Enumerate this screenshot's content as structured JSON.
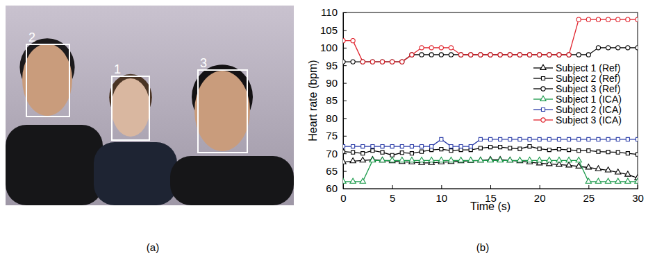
{
  "chart_data": {
    "type": "line",
    "xlabel": "Time (s)",
    "ylabel": "Heart rate (bpm)",
    "x": [
      0,
      1,
      2,
      3,
      4,
      5,
      6,
      7,
      8,
      9,
      10,
      11,
      12,
      13,
      14,
      15,
      16,
      17,
      18,
      19,
      20,
      21,
      22,
      23,
      24,
      25,
      26,
      27,
      28,
      29,
      30
    ],
    "xlim": [
      0,
      30
    ],
    "xticks": [
      0,
      5,
      10,
      15,
      20,
      25,
      30
    ],
    "ylim": [
      60,
      110
    ],
    "yticks": [
      60,
      65,
      70,
      75,
      80,
      85,
      90,
      95,
      100,
      105,
      110
    ],
    "legend": "right",
    "series": [
      {
        "name": "Subject 1 (Ref)",
        "color": "#000000",
        "marker": "triangle",
        "values": [
          67.5,
          67.8,
          68,
          68.2,
          68,
          67.8,
          67.6,
          67.5,
          67.3,
          67.3,
          67.5,
          67.6,
          67.8,
          67.9,
          68,
          68.2,
          68.2,
          68,
          67.8,
          67.5,
          67.2,
          67,
          66.8,
          66.6,
          66.3,
          66,
          65.6,
          65.2,
          64.6,
          64,
          63
        ]
      },
      {
        "name": "Subject 2 (Ref)",
        "color": "#000000",
        "marker": "square",
        "values": [
          70.5,
          70.3,
          70,
          70.8,
          70.3,
          69.5,
          70.2,
          70,
          70.5,
          71,
          71.2,
          70.8,
          71,
          71,
          71.5,
          71.8,
          71.8,
          71.5,
          71.3,
          72,
          71.3,
          71,
          71.2,
          71,
          70.8,
          70.8,
          70.5,
          70.4,
          70.3,
          70,
          69.7
        ]
      },
      {
        "name": "Subject 3 (Ref)",
        "color": "#000000",
        "marker": "circle",
        "values": [
          96,
          96,
          96,
          96,
          96,
          96,
          96,
          98,
          98,
          98,
          98,
          98,
          98,
          98,
          98,
          98,
          98,
          98,
          98,
          98,
          98,
          98,
          98,
          98,
          98,
          98,
          100,
          100,
          100,
          100,
          100
        ]
      },
      {
        "name": "Subject 1 (ICA)",
        "color": "#1a9a4a",
        "marker": "triangle",
        "values": [
          62,
          62,
          62,
          68,
          68,
          68,
          68,
          68,
          68,
          68,
          68,
          68,
          68,
          68,
          68,
          68,
          68,
          68,
          68,
          68,
          68,
          68,
          68,
          68,
          68,
          62,
          62,
          62,
          62,
          62,
          62
        ]
      },
      {
        "name": "Subject 2 (ICA)",
        "color": "#2a3ca8",
        "marker": "square",
        "values": [
          72,
          72,
          72,
          72,
          72,
          72,
          72,
          72,
          72,
          72,
          74,
          72,
          72,
          72,
          74,
          74,
          74,
          74,
          74,
          74,
          74,
          74,
          74,
          74,
          74,
          74,
          74,
          74,
          74,
          74,
          74
        ]
      },
      {
        "name": "Subject 3 (ICA)",
        "color": "#e0202a",
        "marker": "circle",
        "values": [
          102,
          102,
          96,
          96,
          96,
          96,
          96,
          98,
          100,
          100,
          100,
          100,
          98,
          98,
          98,
          98,
          98,
          98,
          98,
          98,
          98,
          98,
          98,
          98,
          108,
          108,
          108,
          108,
          108,
          108,
          108
        ]
      }
    ]
  },
  "figure": {
    "panel_labels": [
      "(a)",
      "(b)"
    ],
    "photo": {
      "face_boxes": [
        {
          "label": "2"
        },
        {
          "label": "1"
        },
        {
          "label": "3"
        }
      ]
    }
  }
}
